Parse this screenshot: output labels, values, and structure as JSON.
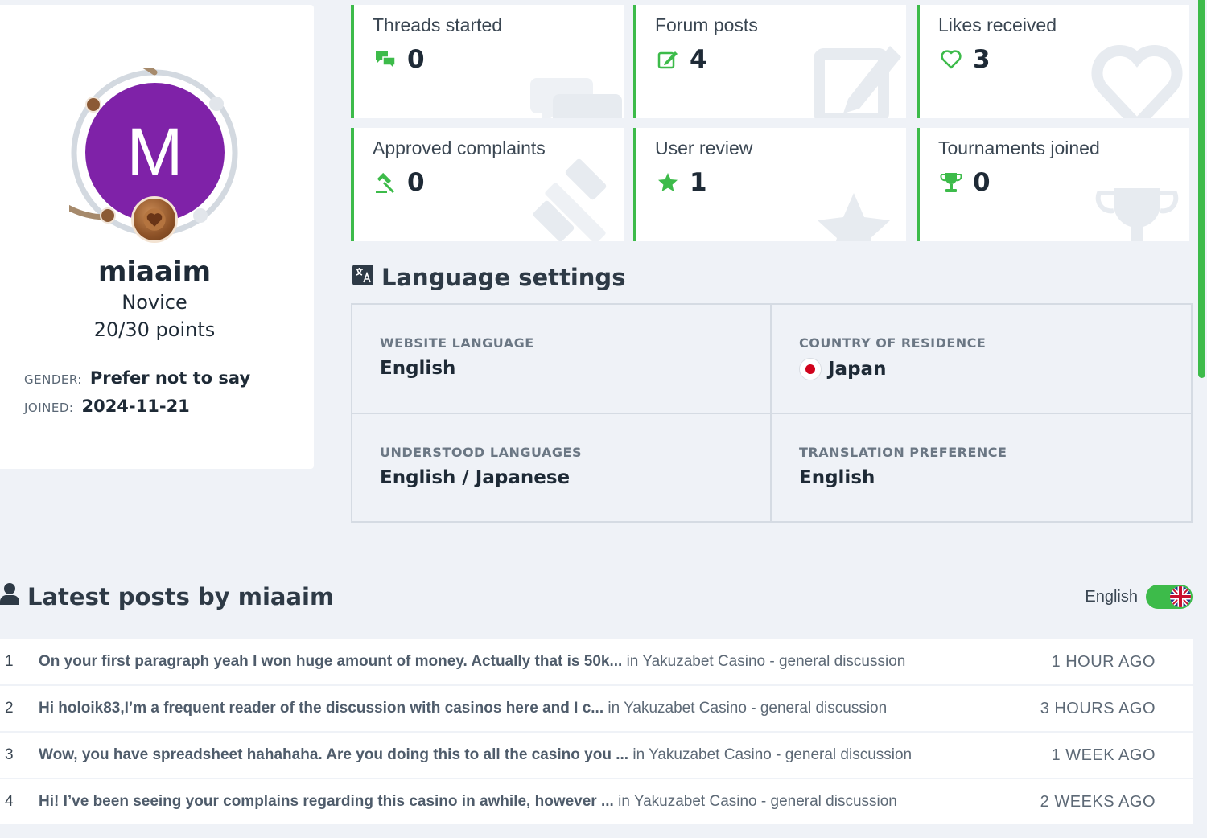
{
  "profile": {
    "avatar_letter": "M",
    "username": "miaaim",
    "rank": "Novice",
    "points": "20/30 points",
    "points_progress": 0.67,
    "gender_label": "GENDER:",
    "gender_value": "Prefer not to say",
    "joined_label": "JOINED:",
    "joined_value": "2024-11-21"
  },
  "stats": [
    {
      "label": "Threads started",
      "value": "0",
      "icon": "chat-bubbles-icon"
    },
    {
      "label": "Forum posts",
      "value": "4",
      "icon": "edit-icon"
    },
    {
      "label": "Likes received",
      "value": "3",
      "icon": "heart-icon"
    },
    {
      "label": "Approved complaints",
      "value": "0",
      "icon": "gavel-icon"
    },
    {
      "label": "User review",
      "value": "1",
      "icon": "star-icon"
    },
    {
      "label": "Tournaments joined",
      "value": "0",
      "icon": "trophy-icon"
    }
  ],
  "language_settings": {
    "title": "Language settings",
    "website_language_label": "WEBSITE LANGUAGE",
    "website_language_value": "English",
    "country_label": "COUNTRY OF RESIDENCE",
    "country_value": "Japan",
    "understood_label": "UNDERSTOOD LANGUAGES",
    "understood_value": "English / Japanese",
    "translation_label": "TRANSLATION PREFERENCE",
    "translation_value": "English"
  },
  "latest_posts": {
    "title": "Latest posts by miaaim",
    "toggle_label": "English",
    "posts": [
      {
        "num": "1",
        "title": "On your first paragraph yeah I won huge amount of money. Actually that is 50k...",
        "in": "in Yakuzabet Casino - general discussion",
        "time": "1 HOUR AGO"
      },
      {
        "num": "2",
        "title": "Hi holoik83,I’m a frequent reader of the discussion with casinos here and I c...",
        "in": "in Yakuzabet Casino - general discussion",
        "time": "3 HOURS AGO"
      },
      {
        "num": "3",
        "title": "Wow, you have spreadsheet hahahaha. Are you doing this to all the casino you ...",
        "in": "in Yakuzabet Casino - general discussion",
        "time": "1 WEEK AGO"
      },
      {
        "num": "4",
        "title": "Hi! I’ve been seeing your complains regarding this casino in awhile, however ...",
        "in": "in Yakuzabet Casino - general discussion",
        "time": "2 WEEKS AGO"
      }
    ]
  },
  "colors": {
    "accent": "#3dbb4a",
    "avatar": "#7f22a8",
    "background": "#eff2f7"
  }
}
